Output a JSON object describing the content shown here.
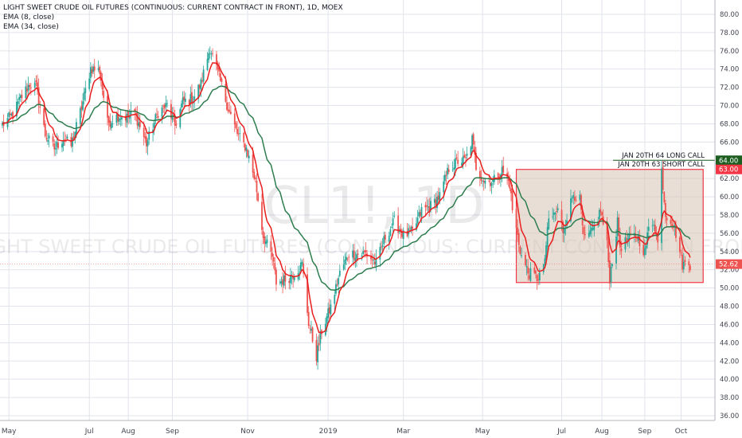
{
  "legend": {
    "title": "LIGHT SWEET CRUDE OIL FUTURES (CONTINUOUS: CURRENT CONTRACT IN FRONT), 1D, MOEX",
    "ema_fast": "EMA (8, close)",
    "ema_slow": "EMA (34, close)"
  },
  "watermark": {
    "symbol": "CL1!, 1D",
    "description": "LIGHT SWEET CRUDE OIL FUTURES (CONTINUOUS: CURRENT CONTRACT IN FRONT)"
  },
  "colors": {
    "background": "#ffffff",
    "grid": "#e1e3eb",
    "candle_up": "#26a69a",
    "candle_down": "#ef5350",
    "ema_fast": "#e91e1e",
    "ema_slow": "#2e7d4f",
    "range_box_fill": "#d7c2b3",
    "range_box_stroke": "#f23645",
    "long_call_color": "#1b5e20",
    "short_call_color": "#f23645",
    "last_price_color": "#ef5350"
  },
  "annotations": {
    "long_call": {
      "text": "JAN 20TH 64 LONG CALL",
      "price": 64.0,
      "price_label": "64.00"
    },
    "short_call": {
      "text": "JAN 20TH 63 SHORT CALL",
      "price": 63.0,
      "price_label": "63.00"
    },
    "range_box": {
      "top": 63.0,
      "bottom": 50.6,
      "start": "2019-05-27",
      "end": "2019-10-18"
    }
  },
  "last_price": {
    "value": 52.62,
    "label": "52.62"
  },
  "chart_data": {
    "type": "candlestick",
    "title": "LIGHT SWEET CRUDE OIL FUTURES (CONTINUOUS: CURRENT CONTRACT IN FRONT), 1D, MOEX",
    "xlabel": "",
    "ylabel": "",
    "ylim": [
      36,
      80
    ],
    "xlim": [
      "2018-04-26",
      "2019-10-24"
    ],
    "grid": true,
    "y_axis_side": "right",
    "y_ticks": [
      "80.00",
      "78.00",
      "76.00",
      "74.00",
      "72.00",
      "70.00",
      "68.00",
      "66.00",
      "64.00",
      "62.00",
      "60.00",
      "58.00",
      "56.00",
      "54.00",
      "52.00",
      "50.00",
      "48.00",
      "46.00",
      "44.00",
      "42.00",
      "40.00",
      "38.00",
      "36.00"
    ],
    "x_ticks": [
      {
        "label": "May",
        "date": "2018-05-01"
      },
      {
        "label": "Jul",
        "date": "2018-07-02"
      },
      {
        "label": "Aug",
        "date": "2018-08-01"
      },
      {
        "label": "Sep",
        "date": "2018-09-04"
      },
      {
        "label": "Nov",
        "date": "2018-11-01"
      },
      {
        "label": "2019",
        "date": "2019-01-02"
      },
      {
        "label": "Mar",
        "date": "2019-03-01"
      },
      {
        "label": "May",
        "date": "2019-05-01"
      },
      {
        "label": "Jul",
        "date": "2019-07-01"
      },
      {
        "label": "Aug",
        "date": "2019-08-01"
      },
      {
        "label": "Sep",
        "date": "2019-09-03"
      },
      {
        "label": "Oct",
        "date": "2019-10-01"
      }
    ],
    "close_anchors": [
      [
        "2018-04-26",
        67.9
      ],
      [
        "2018-05-04",
        69.0
      ],
      [
        "2018-05-10",
        70.8
      ],
      [
        "2018-05-17",
        72.4
      ],
      [
        "2018-05-22",
        72.1
      ],
      [
        "2018-05-29",
        66.8
      ],
      [
        "2018-06-05",
        65.3
      ],
      [
        "2018-06-12",
        66.4
      ],
      [
        "2018-06-18",
        65.6
      ],
      [
        "2018-06-26",
        69.8
      ],
      [
        "2018-07-03",
        74.1
      ],
      [
        "2018-07-10",
        73.8
      ],
      [
        "2018-07-16",
        68.1
      ],
      [
        "2018-07-24",
        68.9
      ],
      [
        "2018-07-31",
        68.7
      ],
      [
        "2018-08-06",
        69.2
      ],
      [
        "2018-08-15",
        65.8
      ],
      [
        "2018-08-24",
        69.3
      ],
      [
        "2018-08-31",
        70.0
      ],
      [
        "2018-09-06",
        67.8
      ],
      [
        "2018-09-12",
        70.4
      ],
      [
        "2018-09-20",
        70.8
      ],
      [
        "2018-09-26",
        72.4
      ],
      [
        "2018-10-03",
        76.4
      ],
      [
        "2018-10-10",
        73.1
      ],
      [
        "2018-10-17",
        69.7
      ],
      [
        "2018-10-24",
        66.9
      ],
      [
        "2018-10-31",
        65.3
      ],
      [
        "2018-11-07",
        61.7
      ],
      [
        "2018-11-13",
        55.7
      ],
      [
        "2018-11-20",
        53.4
      ],
      [
        "2018-11-23",
        50.6
      ],
      [
        "2018-11-30",
        50.9
      ],
      [
        "2018-12-06",
        51.5
      ],
      [
        "2018-12-13",
        52.6
      ],
      [
        "2018-12-18",
        46.2
      ],
      [
        "2018-12-24",
        42.5
      ],
      [
        "2018-12-28",
        45.3
      ],
      [
        "2019-01-04",
        47.9
      ],
      [
        "2019-01-11",
        51.6
      ],
      [
        "2019-01-18",
        53.8
      ],
      [
        "2019-01-25",
        53.7
      ],
      [
        "2019-01-31",
        53.8
      ],
      [
        "2019-02-08",
        52.7
      ],
      [
        "2019-02-15",
        55.6
      ],
      [
        "2019-02-22",
        57.3
      ],
      [
        "2019-03-01",
        55.8
      ],
      [
        "2019-03-08",
        56.1
      ],
      [
        "2019-03-15",
        58.5
      ],
      [
        "2019-03-22",
        59.0
      ],
      [
        "2019-03-29",
        60.1
      ],
      [
        "2019-04-05",
        63.1
      ],
      [
        "2019-04-12",
        63.9
      ],
      [
        "2019-04-18",
        64.0
      ],
      [
        "2019-04-23",
        66.3
      ],
      [
        "2019-04-26",
        63.3
      ],
      [
        "2019-05-02",
        61.8
      ],
      [
        "2019-05-09",
        61.7
      ],
      [
        "2019-05-16",
        62.9
      ],
      [
        "2019-05-22",
        61.4
      ],
      [
        "2019-05-24",
        58.6
      ],
      [
        "2019-05-31",
        53.5
      ],
      [
        "2019-06-05",
        51.7
      ],
      [
        "2019-06-12",
        51.1
      ],
      [
        "2019-06-17",
        52.0
      ],
      [
        "2019-06-21",
        57.4
      ],
      [
        "2019-06-28",
        58.5
      ],
      [
        "2019-07-02",
        56.3
      ],
      [
        "2019-07-10",
        60.4
      ],
      [
        "2019-07-15",
        59.6
      ],
      [
        "2019-07-18",
        55.3
      ],
      [
        "2019-07-24",
        56.0
      ],
      [
        "2019-07-31",
        58.5
      ],
      [
        "2019-08-05",
        54.7
      ],
      [
        "2019-08-07",
        51.1
      ],
      [
        "2019-08-13",
        57.1
      ],
      [
        "2019-08-15",
        54.5
      ],
      [
        "2019-08-22",
        55.4
      ],
      [
        "2019-08-28",
        55.8
      ],
      [
        "2019-09-03",
        53.9
      ],
      [
        "2019-09-06",
        56.5
      ],
      [
        "2019-09-10",
        57.4
      ],
      [
        "2019-09-13",
        54.9
      ],
      [
        "2019-09-16",
        62.9
      ],
      [
        "2019-09-19",
        58.1
      ],
      [
        "2019-09-24",
        57.3
      ],
      [
        "2019-09-27",
        56.0
      ],
      [
        "2019-10-02",
        52.6
      ],
      [
        "2019-10-08",
        52.6
      ]
    ],
    "ema_fast_series": {
      "name": "EMA (8, close)",
      "period": 8
    },
    "ema_slow_series": {
      "name": "EMA (34, close)",
      "period": 34
    }
  }
}
